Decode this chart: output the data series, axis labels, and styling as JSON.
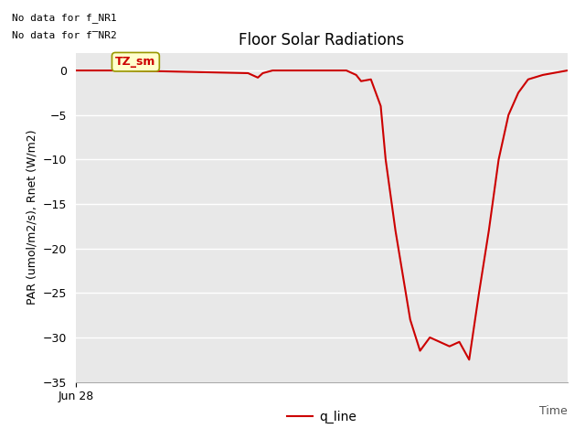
{
  "title": "Floor Solar Radiations",
  "ylabel": "PAR (umol/m2/s), Rnet (W/m2)",
  "xlabel": "Time",
  "xlim": [
    0,
    100
  ],
  "ylim": [
    -35,
    2
  ],
  "yticks": [
    0,
    -5,
    -10,
    -15,
    -20,
    -25,
    -30,
    -35
  ],
  "x_tick_label": "Jun 28",
  "no_data_text1": "No data for f_NR1",
  "no_data_text2": "No data for f̅NR2",
  "tz_label": "TZ_sm",
  "legend_label": "q_line",
  "line_color": "#cc0000",
  "line_width": 1.5,
  "bg_color": "#e8e8e8",
  "x_data": [
    0,
    10,
    35,
    37,
    38,
    40,
    55,
    57,
    58,
    60,
    62,
    63,
    65,
    68,
    70,
    72,
    74,
    76,
    78,
    80,
    82,
    84,
    86,
    88,
    90,
    92,
    95,
    98,
    100
  ],
  "y_data": [
    0,
    0,
    -0.3,
    -0.8,
    -0.3,
    0,
    0,
    -0.5,
    -1.2,
    -1.0,
    -4.0,
    -10,
    -18,
    -28,
    -31.5,
    -30,
    -30.5,
    -31,
    -30.5,
    -32.5,
    -25,
    -18,
    -10,
    -5,
    -2.5,
    -1.0,
    -0.5,
    -0.2,
    0
  ],
  "grid_color": "white",
  "grid_lw": 1.0,
  "title_fontsize": 12,
  "label_fontsize": 9,
  "tick_fontsize": 9
}
